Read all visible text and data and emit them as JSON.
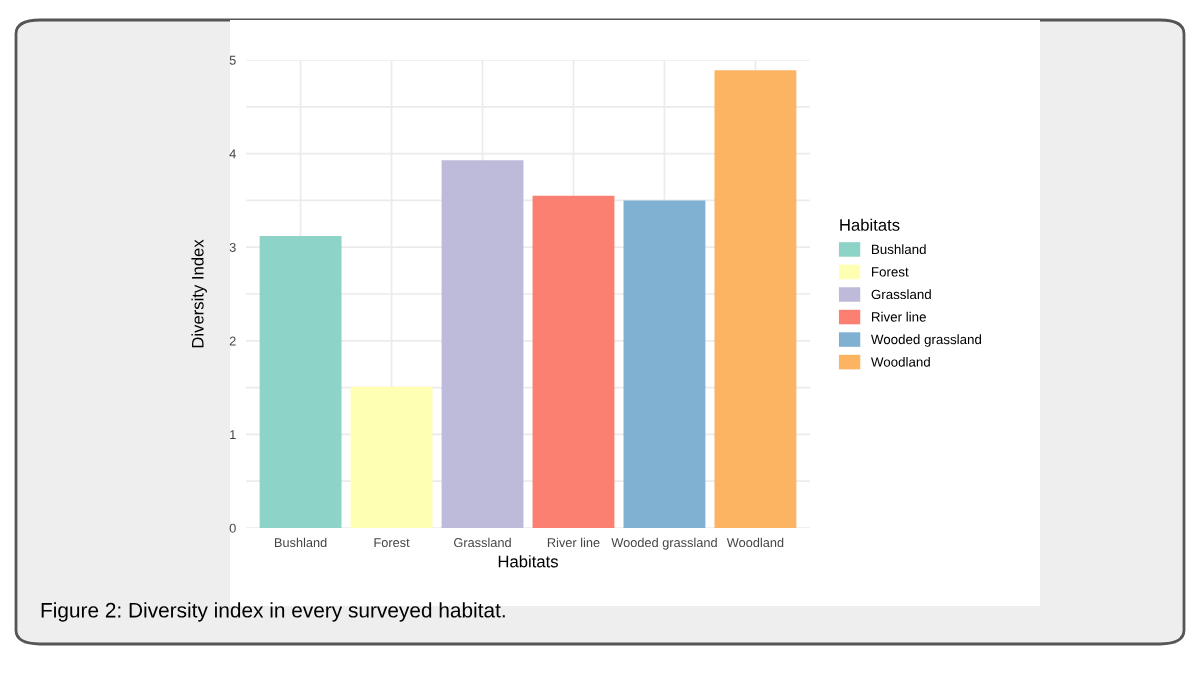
{
  "chart_data": {
    "type": "bar",
    "xlabel": "Habitats",
    "ylabel": "Diversity Index",
    "legend_title": "Habitats",
    "legend": "right",
    "categories": [
      "Bushland",
      "Forest",
      "Grassland",
      "River line",
      "Wooded grassland",
      "Woodland"
    ],
    "series": [
      {
        "name": "Bushland",
        "color": "#8dd3c7",
        "values": [
          3.12,
          null,
          null,
          null,
          null,
          null
        ]
      },
      {
        "name": "Forest",
        "color": "#ffffb3",
        "values": [
          null,
          1.51,
          null,
          null,
          null,
          null
        ]
      },
      {
        "name": "Grassland",
        "color": "#bebada",
        "values": [
          null,
          null,
          3.93,
          null,
          null,
          null
        ]
      },
      {
        "name": "River line",
        "color": "#fb8072",
        "values": [
          null,
          null,
          null,
          3.55,
          null,
          null
        ]
      },
      {
        "name": "Wooded grassland",
        "color": "#80b1d3",
        "values": [
          null,
          null,
          null,
          null,
          3.5,
          null
        ]
      },
      {
        "name": "Woodland",
        "color": "#fdb462",
        "values": [
          null,
          null,
          null,
          null,
          null,
          4.89
        ]
      }
    ],
    "ylim": [
      0,
      5
    ],
    "yticks": [
      0,
      {
        "value": 0.5,
        "label": null
      },
      1,
      {
        "value": 1.5,
        "label": null
      },
      2,
      {
        "value": 2.5,
        "label": null
      },
      3,
      {
        "value": 3.5,
        "label": null
      },
      4,
      {
        "value": 4.5,
        "label": null
      },
      5
    ],
    "grid": true,
    "annotations": [
      "Figure 2: Diversity index in every surveyed habitat."
    ]
  }
}
